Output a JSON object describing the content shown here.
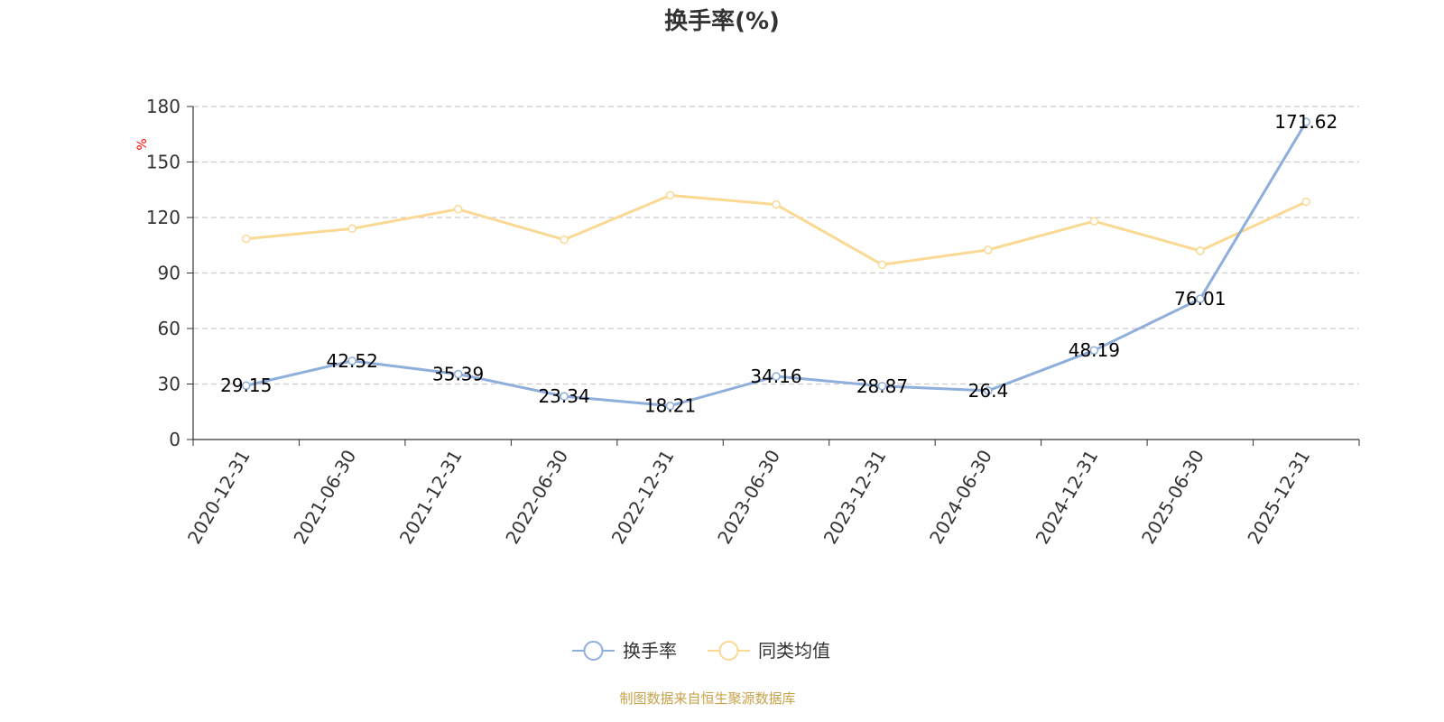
{
  "chart_data": {
    "type": "line",
    "title": "换手率(%)",
    "ylabel": "%",
    "ylim": [
      0,
      180
    ],
    "yticks": [
      0,
      30,
      60,
      90,
      120,
      150,
      180
    ],
    "grid": true,
    "legend_position": "bottom",
    "categories": [
      "2020-12-31",
      "2021-06-30",
      "2021-12-31",
      "2022-06-30",
      "2022-12-31",
      "2023-06-30",
      "2023-12-31",
      "2024-06-30",
      "2024-12-31",
      "2025-06-30",
      "2025-12-31"
    ],
    "series": [
      {
        "name": "换手率",
        "color": "#8eaedb",
        "values": [
          29.15,
          42.52,
          35.39,
          23.34,
          18.21,
          34.16,
          28.87,
          26.4,
          48.19,
          76.01,
          171.62
        ],
        "labels": [
          "29.15",
          "42.52",
          "35.39",
          "23.34",
          "18.21",
          "34.16",
          "28.87",
          "26.4",
          "48.19",
          "76.01",
          "171.62"
        ],
        "show_labels": true
      },
      {
        "name": "同类均值",
        "color": "#fad994",
        "values": [
          108.5,
          114,
          124.5,
          108,
          132,
          127,
          94.5,
          102.5,
          118,
          102,
          128.5
        ],
        "show_labels": false
      }
    ],
    "source": "制图数据来自恒生聚源数据库"
  },
  "colors": {
    "axis": "#333333",
    "grid": "#cccccc",
    "unit": "#ff0000",
    "source": "#c8a24a"
  }
}
